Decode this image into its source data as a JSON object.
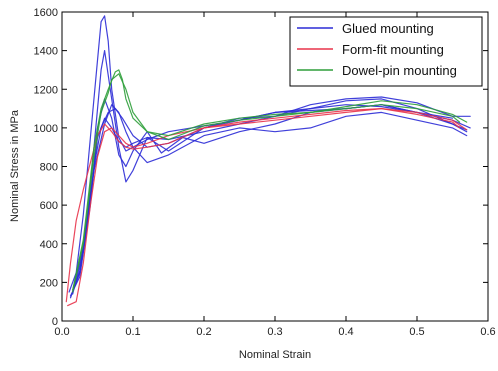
{
  "chart_data": {
    "type": "line",
    "title": "",
    "xlabel": "Nominal Strain",
    "ylabel": "Nominal Stress in MPa",
    "xlim": [
      0,
      0.6
    ],
    "ylim": [
      0,
      1600
    ],
    "xticks": [
      "0.0",
      "0.1",
      "0.2",
      "0.3",
      "0.4",
      "0.5",
      "0.6"
    ],
    "yticks": [
      "0",
      "200",
      "400",
      "600",
      "800",
      "1000",
      "1200",
      "1400",
      "1600"
    ],
    "grid": false,
    "legend_position": "top-right",
    "series": [
      {
        "name": "Glued mounting",
        "color": "#2b2bd6",
        "curves": [
          {
            "x": [
              0.01,
              0.02,
              0.03,
              0.04,
              0.05,
              0.055,
              0.06,
              0.065,
              0.07,
              0.08,
              0.09,
              0.1,
              0.12,
              0.15,
              0.2,
              0.25,
              0.3,
              0.35,
              0.4,
              0.45,
              0.5,
              0.55,
              0.575
            ],
            "y": [
              150,
              250,
              550,
              950,
              1350,
              1550,
              1580,
              1450,
              1200,
              950,
              880,
              900,
              940,
              980,
              1010,
              1040,
              1080,
              1100,
              1120,
              1110,
              1080,
              1040,
              1000
            ]
          },
          {
            "x": [
              0.012,
              0.025,
              0.035,
              0.045,
              0.055,
              0.06,
              0.07,
              0.08,
              0.09,
              0.1,
              0.12,
              0.15,
              0.2,
              0.25,
              0.3,
              0.35,
              0.4,
              0.45,
              0.5,
              0.55,
              0.575
            ],
            "y": [
              120,
              250,
              500,
              900,
              1300,
              1400,
              1150,
              900,
              720,
              780,
              950,
              880,
              1000,
              1050,
              1060,
              1120,
              1150,
              1160,
              1130,
              1060,
              1060
            ]
          },
          {
            "x": [
              0.012,
              0.025,
              0.04,
              0.05,
              0.06,
              0.07,
              0.08,
              0.09,
              0.1,
              0.12,
              0.14,
              0.17,
              0.2,
              0.25,
              0.3,
              0.35,
              0.4,
              0.45,
              0.5,
              0.55,
              0.57
            ],
            "y": [
              130,
              230,
              600,
              1000,
              1150,
              1050,
              860,
              800,
              880,
              980,
              870,
              950,
              920,
              980,
              1020,
              1080,
              1100,
              1120,
              1080,
              1020,
              980
            ]
          },
          {
            "x": [
              0.015,
              0.025,
              0.04,
              0.05,
              0.06,
              0.07,
              0.08,
              0.09,
              0.1,
              0.12,
              0.15,
              0.2,
              0.25,
              0.3,
              0.35,
              0.4,
              0.45,
              0.5,
              0.55,
              0.57
            ],
            "y": [
              150,
              260,
              620,
              950,
              1050,
              1000,
              930,
              900,
              920,
              950,
              940,
              980,
              1020,
              1060,
              1100,
              1140,
              1150,
              1100,
              1020,
              990
            ]
          },
          {
            "x": [
              0.015,
              0.03,
              0.045,
              0.055,
              0.065,
              0.075,
              0.085,
              0.1,
              0.12,
              0.15,
              0.2,
              0.25,
              0.3,
              0.35,
              0.4,
              0.45,
              0.5,
              0.55
            ],
            "y": [
              160,
              380,
              800,
              1000,
              1080,
              1100,
              1050,
              960,
              900,
              920,
              1000,
              1040,
              1080,
              1090,
              1100,
              1120,
              1080,
              1050
            ]
          },
          {
            "x": [
              0.015,
              0.03,
              0.045,
              0.06,
              0.07,
              0.08,
              0.09,
              0.1,
              0.12,
              0.15,
              0.2,
              0.25,
              0.3,
              0.35,
              0.4,
              0.45,
              0.5,
              0.55,
              0.57
            ],
            "y": [
              140,
              360,
              780,
              1020,
              1120,
              1080,
              980,
              900,
              820,
              860,
              960,
              1000,
              980,
              1000,
              1060,
              1080,
              1040,
              1000,
              960
            ]
          }
        ]
      },
      {
        "name": "Form-fit mounting",
        "color": "#e8334a",
        "curves": [
          {
            "x": [
              0.006,
              0.012,
              0.02,
              0.03,
              0.04,
              0.05,
              0.06,
              0.07,
              0.08,
              0.09,
              0.1,
              0.12,
              0.15,
              0.2,
              0.25,
              0.3,
              0.35,
              0.4,
              0.45,
              0.5,
              0.55,
              0.57
            ],
            "y": [
              100,
              300,
              520,
              680,
              820,
              960,
              1020,
              980,
              930,
              900,
              890,
              900,
              920,
              1000,
              1020,
              1040,
              1060,
              1080,
              1100,
              1080,
              1040,
              990
            ]
          },
          {
            "x": [
              0.008,
              0.02,
              0.03,
              0.04,
              0.05,
              0.06,
              0.07,
              0.08,
              0.09,
              0.1,
              0.12,
              0.15,
              0.2,
              0.25,
              0.3,
              0.35,
              0.4,
              0.45,
              0.5,
              0.55,
              0.56
            ],
            "y": [
              80,
              100,
              300,
              600,
              850,
              980,
              1000,
              960,
              920,
              900,
              920,
              960,
              1000,
              1030,
              1050,
              1070,
              1090,
              1100,
              1070,
              1030,
              1000
            ]
          }
        ]
      },
      {
        "name": "Dowel-pin mounting",
        "color": "#2e9e3a",
        "curves": [
          {
            "x": [
              0.015,
              0.03,
              0.045,
              0.055,
              0.065,
              0.075,
              0.08,
              0.085,
              0.09,
              0.1,
              0.12,
              0.15,
              0.2,
              0.25,
              0.3,
              0.35,
              0.4,
              0.45,
              0.5,
              0.55,
              0.57
            ],
            "y": [
              160,
              420,
              900,
              1100,
              1200,
              1290,
              1300,
              1250,
              1150,
              1050,
              980,
              960,
              1020,
              1050,
              1070,
              1080,
              1110,
              1140,
              1120,
              1070,
              1030
            ]
          },
          {
            "x": [
              0.015,
              0.03,
              0.045,
              0.055,
              0.065,
              0.07,
              0.08,
              0.09,
              0.1,
              0.12,
              0.15,
              0.2,
              0.25,
              0.3,
              0.35,
              0.4,
              0.45,
              0.5,
              0.55,
              0.56
            ],
            "y": [
              150,
              400,
              850,
              1080,
              1180,
              1250,
              1280,
              1200,
              1080,
              980,
              940,
              1010,
              1040,
              1060,
              1080,
              1100,
              1120,
              1100,
              1060,
              1030
            ]
          }
        ]
      }
    ]
  }
}
